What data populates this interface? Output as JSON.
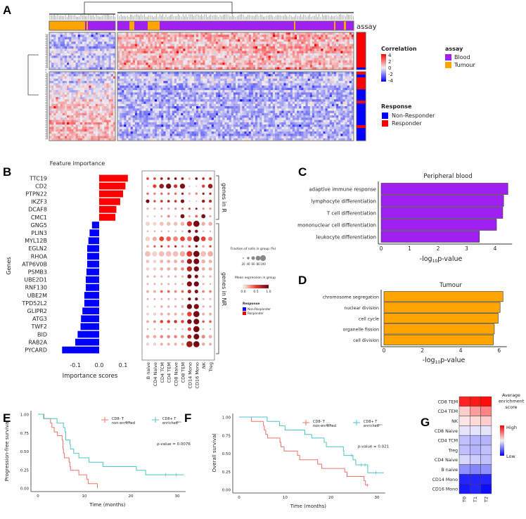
{
  "panel_letters": [
    "A",
    "B",
    "C",
    "D",
    "E",
    "F",
    "G"
  ],
  "colors": {
    "blood": "#a020f0",
    "tumour": "#ffa500",
    "responder": "#ff0000",
    "non_responder": "#0000ff",
    "km_red": "#f0736c",
    "km_teal": "#4fc4c8"
  },
  "chart_data": [
    {
      "id": "A",
      "type": "heatmap",
      "annotation_label": "assay",
      "colorbar": {
        "title": "Correlation",
        "ticks": [
          "4",
          "2",
          "0",
          "-2",
          "-4"
        ],
        "range": [
          -4,
          4
        ]
      },
      "assay_legend": {
        "title": "assay",
        "items": [
          "Blood",
          "Tumour"
        ]
      },
      "response_legend": {
        "title": "Response",
        "items": [
          "Non-Responder",
          "Responder"
        ]
      },
      "row_clusters": 2,
      "column_clusters": 2
    },
    {
      "id": "B1",
      "type": "bar",
      "title": "Feature importance",
      "xlabel": "Importance scores",
      "ylabel": "Genes",
      "xticks": [
        "-0.1",
        "0.0",
        "0.1"
      ],
      "xtick_values": [
        -0.1,
        0.0,
        0.1
      ],
      "categories": [
        "TTC19",
        "CD2",
        "PTPN22",
        "IKZF3",
        "DCAF8",
        "CMC1",
        "GNG5",
        "PLIN3",
        "MYL12B",
        "EGLN2",
        "RHOA",
        "ATP6V0B",
        "PSMB3",
        "UBE2D1",
        "RNF130",
        "UBE2M",
        "TPD52L2",
        "GLIPR2",
        "ATG3",
        "TWF2",
        "BID",
        "RAB2A",
        "PYCARD"
      ],
      "values": [
        0.12,
        0.11,
        0.1,
        0.088,
        0.072,
        0.068,
        -0.03,
        -0.04,
        -0.045,
        -0.05,
        -0.05,
        -0.05,
        -0.053,
        -0.056,
        -0.056,
        -0.062,
        -0.062,
        -0.07,
        -0.076,
        -0.078,
        -0.09,
        -0.1,
        -0.155
      ]
    },
    {
      "id": "B2",
      "type": "scatter",
      "subtype": "dotplot",
      "columns": [
        "B naive",
        "CD4 Naive",
        "CD4 TCM",
        "CD4 TEM",
        "CD8 Naive",
        "CD8 TEM",
        "CD14 Mono",
        "CD16 Mono",
        "NK",
        "Treg"
      ],
      "groups": [
        {
          "label": "genes in R",
          "rows": 6
        },
        {
          "label": "genes in NR",
          "rows": 17
        }
      ],
      "size_legend": {
        "title": "Fraction of cells in group (%)",
        "ticks": [
          "20",
          "40",
          "60",
          "80",
          "100"
        ]
      },
      "color_legend": {
        "title": "Mean expression in group",
        "ticks": [
          "0.0",
          "0.5",
          "1.0"
        ]
      },
      "response_legend": {
        "title": "Response",
        "items": [
          "Non-Responder",
          "Responder"
        ]
      },
      "fraction": [
        [
          0.3,
          0.3,
          0.3,
          0.3,
          0.3,
          0.3,
          0.2,
          0.3,
          0.3,
          0.3
        ],
        [
          0.05,
          0.5,
          0.7,
          0.8,
          0.5,
          0.8,
          0.05,
          0.05,
          0.4,
          0.7
        ],
        [
          0.25,
          0.25,
          0.25,
          0.25,
          0.25,
          0.25,
          0.25,
          0.25,
          0.25,
          0.25
        ],
        [
          0.5,
          0.25,
          0.3,
          0.3,
          0.3,
          0.5,
          0.05,
          0.05,
          0.4,
          0.35
        ],
        [
          0.2,
          0.2,
          0.2,
          0.2,
          0.2,
          0.2,
          0.2,
          0.2,
          0.2,
          0.2
        ],
        [
          0.15,
          0.15,
          0.15,
          0.3,
          0.15,
          0.6,
          0.2,
          0.3,
          0.6,
          0.2
        ],
        [
          0.5,
          0.4,
          0.5,
          0.5,
          0.5,
          0.5,
          0.8,
          1,
          0.5,
          0.5
        ],
        [
          0.1,
          0.1,
          0.1,
          0.1,
          0.1,
          0.1,
          0.4,
          0.4,
          0.1,
          0.1
        ],
        [
          0.6,
          0.6,
          0.7,
          0.7,
          0.7,
          0.7,
          0.7,
          1,
          0.7,
          0.6
        ],
        [
          0.25,
          0.25,
          0.25,
          0.25,
          0.25,
          0.25,
          0.25,
          0.3,
          0.25,
          0.25
        ],
        [
          0.8,
          0.7,
          0.8,
          0.8,
          0.8,
          0.8,
          0.9,
          1,
          0.8,
          0.8
        ],
        [
          0.35,
          0.35,
          0.4,
          0.4,
          0.4,
          0.4,
          0.8,
          0.9,
          0.5,
          0.4
        ],
        [
          0.35,
          0.35,
          0.4,
          0.4,
          0.4,
          0.4,
          0.8,
          0.8,
          0.4,
          0.4
        ],
        [
          0.2,
          0.2,
          0.2,
          0.2,
          0.2,
          0.2,
          0.6,
          0.5,
          0.2,
          0.2
        ],
        [
          0.15,
          0.15,
          0.15,
          0.15,
          0.15,
          0.15,
          0.8,
          0.8,
          0.15,
          0.1
        ],
        [
          0.3,
          0.3,
          0.3,
          0.3,
          0.3,
          0.3,
          0.5,
          0.5,
          0.3,
          0.3
        ],
        [
          0.15,
          0.15,
          0.15,
          0.15,
          0.15,
          0.15,
          0.4,
          0.4,
          0.15,
          0.15
        ],
        [
          0.15,
          0.15,
          0.25,
          0.25,
          0.2,
          0.3,
          0.8,
          0.8,
          0.2,
          0.2
        ],
        [
          0.25,
          0.3,
          0.3,
          0.3,
          0.3,
          0.3,
          0.7,
          1,
          0.3,
          0.3
        ],
        [
          0.3,
          0.3,
          0.4,
          0.4,
          0.4,
          0.4,
          0.7,
          0.9,
          0.3,
          0.3
        ],
        [
          0.1,
          0.1,
          0.1,
          0.1,
          0.1,
          0.1,
          0.5,
          1,
          0.1,
          0.1
        ],
        [
          0.4,
          0.4,
          0.4,
          0.4,
          0.4,
          0.4,
          0.6,
          0.9,
          0.5,
          0.4
        ],
        [
          0.3,
          0.3,
          0.3,
          0.3,
          0.3,
          0.3,
          1,
          1,
          0.4,
          0.3
        ]
      ],
      "expression": [
        [
          0.5,
          0.5,
          0.8,
          0.8,
          0.9,
          0.8,
          0.2,
          0.9,
          0.7,
          0.6
        ],
        [
          0.1,
          0.5,
          0.8,
          0.95,
          0.6,
          0.9,
          0.1,
          0.1,
          0.5,
          0.8
        ],
        [
          0.4,
          0.3,
          0.4,
          0.4,
          0.4,
          0.8,
          0.2,
          0.3,
          0.8,
          0.7
        ],
        [
          0.95,
          0.5,
          0.6,
          0.7,
          0.6,
          0.9,
          0.1,
          0.1,
          0.8,
          0.7
        ],
        [
          0.2,
          0.2,
          0.3,
          0.2,
          0.3,
          0.4,
          0.6,
          0.9,
          0.3,
          0.3
        ],
        [
          0.1,
          0.1,
          0.2,
          0.3,
          0.1,
          0.9,
          0.2,
          0.4,
          0.9,
          0.2
        ],
        [
          0.1,
          0.1,
          0.15,
          0.15,
          0.15,
          0.2,
          0.6,
          0.95,
          0.2,
          0.2
        ],
        [
          0.2,
          0.2,
          0.2,
          0.2,
          0.2,
          0.2,
          0.95,
          0.9,
          0.2,
          0.2
        ],
        [
          0.1,
          0.2,
          0.5,
          0.4,
          0.3,
          0.5,
          0.4,
          0.95,
          0.5,
          0.3
        ],
        [
          0.2,
          0.4,
          0.6,
          0.4,
          0.7,
          0.3,
          0.5,
          0.9,
          0.2,
          0.5
        ],
        [
          0.15,
          0.1,
          0.15,
          0.15,
          0.15,
          0.2,
          0.55,
          0.95,
          0.15,
          0.2
        ],
        [
          0.15,
          0.1,
          0.2,
          0.2,
          0.2,
          0.3,
          0.8,
          0.95,
          0.2,
          0.2
        ],
        [
          0.1,
          0.1,
          0.2,
          0.2,
          0.2,
          0.3,
          0.7,
          0.95,
          0.2,
          0.2
        ],
        [
          0.2,
          0.2,
          0.2,
          0.2,
          0.2,
          0.2,
          0.95,
          0.9,
          0.2,
          0.2
        ],
        [
          0.2,
          0.2,
          0.2,
          0.2,
          0.2,
          0.2,
          0.9,
          0.95,
          0.2,
          0.2
        ],
        [
          0.2,
          0.2,
          0.4,
          0.4,
          0.3,
          0.4,
          0.7,
          0.9,
          0.3,
          0.3
        ],
        [
          0.2,
          0.2,
          0.2,
          0.2,
          0.2,
          0.2,
          0.9,
          0.9,
          0.2,
          0.2
        ],
        [
          0.1,
          0.1,
          0.2,
          0.2,
          0.2,
          0.2,
          0.95,
          0.9,
          0.2,
          0.2
        ],
        [
          0.1,
          0.1,
          0.2,
          0.2,
          0.2,
          0.2,
          0.5,
          0.95,
          0.2,
          0.2
        ],
        [
          0.2,
          0.3,
          0.5,
          0.5,
          0.6,
          0.5,
          0.9,
          0.95,
          0.4,
          0.4
        ],
        [
          0.2,
          0.2,
          0.2,
          0.2,
          0.2,
          0.2,
          0.5,
          0.95,
          0.2,
          0.2
        ],
        [
          0.2,
          0.2,
          0.3,
          0.3,
          0.3,
          0.3,
          0.7,
          0.95,
          0.3,
          0.2
        ],
        [
          0.1,
          0.1,
          0.2,
          0.2,
          0.2,
          0.2,
          0.8,
          0.95,
          0.2,
          0.2
        ]
      ]
    },
    {
      "id": "C",
      "type": "bar",
      "title": "Peripheral blood",
      "xlabel": "-log",
      "xlabel_sub": "10",
      "xlabel_end": "p-value",
      "categories": [
        "adaptive immune response",
        "lymphocyte differentiation",
        "T cell differentiation",
        "mononuclear cell differentiation",
        "leukocyte differentiation"
      ],
      "values": [
        4.45,
        4.3,
        4.27,
        4.05,
        3.45
      ],
      "xticks": [
        "0",
        "1",
        "2",
        "3",
        "4"
      ],
      "xtick_values": [
        0,
        1,
        2,
        3,
        4
      ],
      "xlim": [
        0,
        4.6
      ]
    },
    {
      "id": "D",
      "type": "bar",
      "title": "Tumour",
      "xlabel": "-log",
      "xlabel_sub": "10",
      "xlabel_end": "p-value",
      "categories": [
        "chromosome segregation",
        "nuclear division",
        "cell cycle",
        "organelle fission",
        "cell division"
      ],
      "values": [
        6.2,
        6.05,
        5.95,
        5.75,
        5.7
      ],
      "xticks": [
        "0",
        "2",
        "4",
        "6"
      ],
      "xtick_values": [
        0,
        2,
        4,
        6
      ],
      "xlim": [
        0,
        6.4
      ]
    },
    {
      "id": "E",
      "type": "line",
      "subtype": "kaplan-meier",
      "ylabel": "Progression-free survival",
      "xlabel": "Time (months)",
      "xticks": [
        "0",
        "10",
        "20",
        "30"
      ],
      "yticks": [
        "0.00",
        "0.25",
        "0.50",
        "0.75",
        "1.00"
      ],
      "xlim": [
        0,
        31.5
      ],
      "ylim": [
        0,
        1
      ],
      "pvalue": "p-value = 0.0076",
      "series": [
        {
          "name": "CD8- T",
          "name2": "non-enriched",
          "sup": "stem",
          "steps": [
            [
              1.3,
              0.94
            ],
            [
              2.7,
              0.88
            ],
            [
              3.0,
              0.82
            ],
            [
              3.5,
              0.76
            ],
            [
              4.2,
              0.71
            ],
            [
              5.2,
              0.65
            ],
            [
              5.4,
              0.53
            ],
            [
              5.5,
              0.47
            ],
            [
              5.7,
              0.41
            ],
            [
              6.7,
              0.35
            ],
            [
              6.9,
              0.29
            ],
            [
              7.0,
              0.24
            ],
            [
              8.8,
              0.18
            ],
            [
              10.5,
              0.12
            ],
            [
              10.8,
              0.06
            ],
            [
              12.8,
              0
            ]
          ],
          "end": 12.8,
          "censor": []
        },
        {
          "name": "CD8+ T",
          "name2": "enriched",
          "sup": "stem",
          "steps": [
            [
              1.2,
              0.94
            ],
            [
              4.1,
              0.88
            ],
            [
              5.5,
              0.82
            ],
            [
              5.8,
              0.76
            ],
            [
              6.0,
              0.65
            ],
            [
              6.9,
              0.59
            ],
            [
              7.0,
              0.53
            ],
            [
              7.7,
              0.47
            ],
            [
              8.8,
              0.41
            ],
            [
              11,
              0.35
            ],
            [
              14,
              0.29
            ],
            [
              21.2,
              0.24
            ],
            [
              23.2,
              0.18
            ]
          ],
          "end": 31.5,
          "censor": [
            [
              27.5,
              0.18
            ],
            [
              29.8,
              0.18
            ]
          ]
        }
      ]
    },
    {
      "id": "F",
      "type": "line",
      "subtype": "kaplan-meier",
      "ylabel": "Overall survival",
      "xlabel": "Time (months)",
      "xticks": [
        "0",
        "10",
        "20",
        "30"
      ],
      "yticks": [
        "0.00",
        "0.25",
        "0.50",
        "0.75",
        "1.00"
      ],
      "xlim": [
        0,
        31.5
      ],
      "ylim": [
        0,
        1
      ],
      "pvalue": "p-value = 0.021",
      "series": [
        {
          "name": "CD8- T",
          "name2": "non-enriched",
          "sup": "stem",
          "steps": [
            [
              2.7,
              0.94
            ],
            [
              5.3,
              0.88
            ],
            [
              5.5,
              0.82
            ],
            [
              5.8,
              0.76
            ],
            [
              6.2,
              0.71
            ],
            [
              8.9,
              0.65
            ],
            [
              9.1,
              0.59
            ],
            [
              9.8,
              0.53
            ],
            [
              12.7,
              0.47
            ],
            [
              13.2,
              0.41
            ],
            [
              17.1,
              0.35
            ],
            [
              18,
              0.29
            ],
            [
              23,
              0.24
            ],
            [
              23.5,
              0.18
            ],
            [
              27.2,
              0.12
            ],
            [
              27.5,
              0.06
            ]
          ],
          "end": 27.9,
          "censor": [
            [
              27.9,
              0.06
            ]
          ]
        },
        {
          "name": "CD8+ T",
          "name2": "enriched",
          "sup": "stem",
          "steps": [
            [
              6.1,
              0.94
            ],
            [
              8.8,
              0.88
            ],
            [
              10,
              0.82
            ],
            [
              14.3,
              0.76
            ],
            [
              15.8,
              0.71
            ],
            [
              18.5,
              0.65
            ],
            [
              19,
              0.59
            ],
            [
              22.7,
              0.53
            ],
            [
              22.8,
              0.47
            ],
            [
              24.8,
              0.41
            ],
            [
              25.4,
              0.34
            ],
            [
              28,
              0.23
            ]
          ],
          "end": 31.5,
          "censor": [
            [
              24.5,
              0.47
            ],
            [
              26.6,
              0.34
            ],
            [
              27.4,
              0.34
            ],
            [
              29.8,
              0.23
            ]
          ]
        }
      ]
    },
    {
      "id": "G",
      "type": "heatmap",
      "legend_title": [
        "Average",
        "enrichment",
        "score"
      ],
      "legend_high": "High",
      "legend_low": "Low",
      "rows": [
        "CD8 TEM",
        "CD4 TEM",
        "NK",
        "CD8 Naive",
        "CD4 TCM",
        "Treg",
        "CD4 Naive",
        "B naive",
        "CD14 Mono",
        "CD16 Mono"
      ],
      "columns": [
        "T0",
        "T1",
        "T2"
      ],
      "values": [
        [
          0.85,
          0.9,
          0.95
        ],
        [
          0.15,
          0.35,
          0.45
        ],
        [
          0.05,
          0.1,
          0.15
        ],
        [
          -0.05,
          -0.05,
          -0.05
        ],
        [
          -0.2,
          -0.25,
          -0.25
        ],
        [
          -0.2,
          -0.25,
          -0.2
        ],
        [
          -0.1,
          -0.15,
          -0.2
        ],
        [
          -0.4,
          -0.45,
          -0.4
        ],
        [
          -0.85,
          -0.85,
          -0.85
        ],
        [
          -0.9,
          -0.85,
          -0.95
        ]
      ],
      "range": [
        -1,
        1
      ]
    }
  ]
}
